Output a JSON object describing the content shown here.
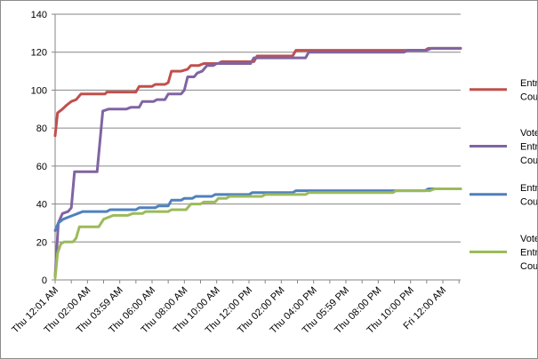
{
  "chart_data": {
    "type": "line",
    "title": "",
    "xlabel": "",
    "ylabel": "",
    "ylim": [
      0,
      140
    ],
    "y_ticks": [
      0,
      20,
      40,
      60,
      80,
      100,
      120,
      140
    ],
    "grid": "horizontal",
    "legend_position": "right",
    "x_tick_labels": [
      "Thu 12:01 AM",
      "Thu 02:00 AM",
      "Thu 03:59 AM",
      "Thu 06:00 AM",
      "Thu 08:00 AM",
      "Thu 10:00 AM",
      "Thu 12:00 PM",
      "Thu 02:00 PM",
      "Thu 04:00 PM",
      "Thu 05:59 PM",
      "Thu 08:00 PM",
      "Thu 10:00 PM",
      "Fri 12:00 AM"
    ],
    "x_tick_hours": [
      0,
      2,
      4,
      6,
      8,
      10,
      12,
      14,
      16,
      18,
      20,
      22,
      24
    ],
    "x_range_hours": [
      0,
      25.1
    ],
    "series": [
      {
        "name": "Entry Count",
        "color": "#c0504d",
        "points": [
          [
            0,
            76
          ],
          [
            0.15,
            88
          ],
          [
            0.45,
            90
          ],
          [
            0.7,
            92
          ],
          [
            1.0,
            94
          ],
          [
            1.3,
            95
          ],
          [
            1.6,
            98
          ],
          [
            3.1,
            98
          ],
          [
            3.2,
            99
          ],
          [
            5.0,
            99
          ],
          [
            5.2,
            102
          ],
          [
            6.0,
            102
          ],
          [
            6.2,
            103
          ],
          [
            6.8,
            103
          ],
          [
            7.0,
            104
          ],
          [
            7.2,
            110
          ],
          [
            7.8,
            110
          ],
          [
            8.2,
            111
          ],
          [
            8.4,
            113
          ],
          [
            8.9,
            113
          ],
          [
            9.2,
            114
          ],
          [
            10.1,
            114
          ],
          [
            10.3,
            115
          ],
          [
            12.3,
            115
          ],
          [
            12.5,
            118
          ],
          [
            14.7,
            118
          ],
          [
            14.9,
            121
          ],
          [
            22.9,
            121
          ],
          [
            23.1,
            122
          ],
          [
            25.1,
            122
          ]
        ]
      },
      {
        "name": "Voted Entry Count",
        "color": "#8064a2",
        "points": [
          [
            0,
            2
          ],
          [
            0.2,
            30
          ],
          [
            0.45,
            35
          ],
          [
            0.8,
            36
          ],
          [
            1.0,
            38
          ],
          [
            1.2,
            57
          ],
          [
            2.6,
            57
          ],
          [
            2.95,
            89
          ],
          [
            3.3,
            90
          ],
          [
            4.4,
            90
          ],
          [
            4.7,
            91
          ],
          [
            5.2,
            91
          ],
          [
            5.4,
            94
          ],
          [
            6.1,
            94
          ],
          [
            6.3,
            95
          ],
          [
            6.8,
            95
          ],
          [
            7.0,
            98
          ],
          [
            7.8,
            98
          ],
          [
            8.0,
            100
          ],
          [
            8.2,
            107
          ],
          [
            8.6,
            107
          ],
          [
            8.8,
            109
          ],
          [
            9.1,
            110
          ],
          [
            9.4,
            113
          ],
          [
            9.8,
            113
          ],
          [
            10.0,
            114
          ],
          [
            12.1,
            114
          ],
          [
            12.3,
            117
          ],
          [
            15.5,
            117
          ],
          [
            15.7,
            120
          ],
          [
            21.6,
            120
          ],
          [
            21.8,
            121
          ],
          [
            23.0,
            121
          ],
          [
            23.3,
            122
          ],
          [
            25.1,
            122
          ]
        ]
      },
      {
        "name": "Entrant Count",
        "color": "#4f81bd",
        "points": [
          [
            0,
            26
          ],
          [
            0.2,
            30
          ],
          [
            0.5,
            32
          ],
          [
            0.8,
            33
          ],
          [
            1.1,
            34
          ],
          [
            1.4,
            35
          ],
          [
            1.7,
            36
          ],
          [
            3.2,
            36
          ],
          [
            3.4,
            37
          ],
          [
            5.0,
            37
          ],
          [
            5.2,
            38
          ],
          [
            6.2,
            38
          ],
          [
            6.4,
            39
          ],
          [
            7.0,
            39
          ],
          [
            7.2,
            42
          ],
          [
            7.8,
            42
          ],
          [
            8.0,
            43
          ],
          [
            8.5,
            43
          ],
          [
            8.7,
            44
          ],
          [
            9.7,
            44
          ],
          [
            9.9,
            45
          ],
          [
            12.0,
            45
          ],
          [
            12.2,
            46
          ],
          [
            14.7,
            46
          ],
          [
            14.9,
            47
          ],
          [
            22.9,
            47
          ],
          [
            23.1,
            48
          ],
          [
            25.1,
            48
          ]
        ]
      },
      {
        "name": "Voted Entrant Count",
        "color": "#9bbb59",
        "points": [
          [
            0,
            1
          ],
          [
            0.15,
            14
          ],
          [
            0.35,
            19
          ],
          [
            0.55,
            20
          ],
          [
            1.1,
            20
          ],
          [
            1.3,
            22
          ],
          [
            1.5,
            28
          ],
          [
            2.7,
            28
          ],
          [
            3.0,
            32
          ],
          [
            3.3,
            33
          ],
          [
            3.6,
            34
          ],
          [
            4.5,
            34
          ],
          [
            4.8,
            35
          ],
          [
            5.4,
            35
          ],
          [
            5.6,
            36
          ],
          [
            7.0,
            36
          ],
          [
            7.2,
            37
          ],
          [
            8.1,
            37
          ],
          [
            8.4,
            40
          ],
          [
            9.0,
            40
          ],
          [
            9.2,
            41
          ],
          [
            9.9,
            41
          ],
          [
            10.1,
            43
          ],
          [
            10.6,
            43
          ],
          [
            10.8,
            44
          ],
          [
            12.8,
            44
          ],
          [
            13.0,
            45
          ],
          [
            15.5,
            45
          ],
          [
            15.7,
            46
          ],
          [
            20.9,
            46
          ],
          [
            21.1,
            47
          ],
          [
            23.2,
            47
          ],
          [
            23.5,
            48
          ],
          [
            25.1,
            48
          ]
        ]
      }
    ]
  }
}
